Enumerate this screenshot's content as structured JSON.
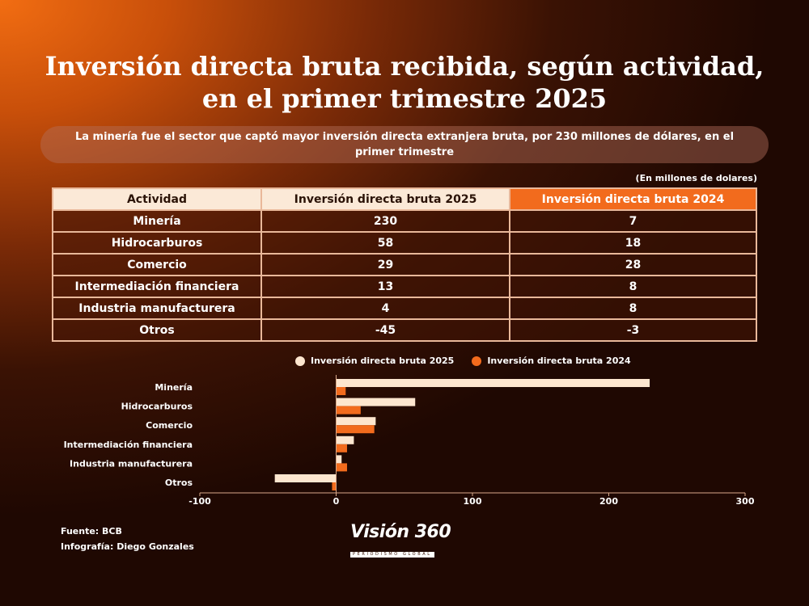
{
  "title": "Inversión directa bruta recibida, según actividad, en el primer trimestre 2025",
  "subtitle": "La minería fue el sector que captó mayor inversión directa extranjera bruta, por 230 millones de dólares, en el primer trimestre",
  "unit_note": "(En millones de dolares)",
  "table": {
    "headers": [
      "Actividad",
      "Inversión directa bruta 2025",
      "Inversión directa bruta 2024"
    ],
    "rows": [
      [
        "Minería",
        "230",
        "7"
      ],
      [
        "Hidrocarburos",
        "58",
        "18"
      ],
      [
        "Comercio",
        "29",
        "28"
      ],
      [
        "Intermediación financiera",
        "13",
        "8"
      ],
      [
        "Industria manufacturera",
        "4",
        "8"
      ],
      [
        "Otros",
        "-45",
        "-3"
      ]
    ]
  },
  "colors": {
    "series_2025": "#fde6cf",
    "series_2024": "#f26b1d",
    "axis": "#d9a98a"
  },
  "chart_data": {
    "type": "bar",
    "orientation": "horizontal",
    "categories": [
      "Minería",
      "Hidrocarburos",
      "Comercio",
      "Intermediación financiera",
      "Industria manufacturera",
      "Otros"
    ],
    "series": [
      {
        "name": "Inversión directa bruta 2025",
        "values": [
          230,
          58,
          29,
          13,
          4,
          -45
        ]
      },
      {
        "name": "Inversión directa bruta 2024",
        "values": [
          7,
          18,
          28,
          8,
          8,
          -3
        ]
      }
    ],
    "xlim": [
      -100,
      300
    ],
    "xticks": [
      -100,
      0,
      100,
      200,
      300
    ],
    "legend_position": "top",
    "grid": false
  },
  "footer": {
    "source": "Fuente: BCB",
    "credit": "Infografía: Diego Gonzales"
  },
  "logo": {
    "name": "Visión 360",
    "tagline": "PERIODISMO GLOBAL"
  }
}
